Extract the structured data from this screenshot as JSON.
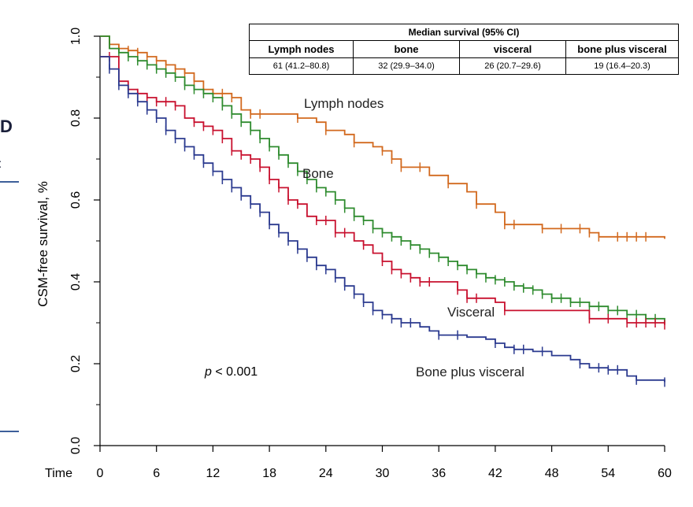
{
  "background_fragments": {
    "left_heading_fragment": "D",
    "left_subheading_fragment": "nt"
  },
  "chart_data": {
    "type": "line",
    "subtype": "kaplan-meier step curves with censor ticks",
    "xlabel": "Time",
    "ylabel": "CSM-free survival, %",
    "xlim": [
      0,
      60
    ],
    "ylim": [
      0,
      1.0
    ],
    "x_ticks": [
      0,
      6,
      12,
      18,
      24,
      30,
      36,
      42,
      48,
      54,
      60
    ],
    "y_ticks": [
      "0.0",
      "0.2",
      "0.4",
      "0.6",
      "0.8",
      "1.0"
    ],
    "grid": false,
    "annotation": "p < 0.001",
    "annotation_italic_part": "p",
    "annotation_rest": " < 0.001",
    "series": [
      {
        "name": "Lymph nodes",
        "color": "#d2691e",
        "points": [
          [
            0,
            1.0
          ],
          [
            1,
            0.98
          ],
          [
            2,
            0.97
          ],
          [
            3,
            0.965
          ],
          [
            4,
            0.96
          ],
          [
            5,
            0.95
          ],
          [
            6,
            0.94
          ],
          [
            7,
            0.93
          ],
          [
            8,
            0.92
          ],
          [
            9,
            0.91
          ],
          [
            10,
            0.89
          ],
          [
            11,
            0.87
          ],
          [
            12,
            0.86
          ],
          [
            14,
            0.85
          ],
          [
            15,
            0.82
          ],
          [
            16,
            0.81
          ],
          [
            18,
            0.81
          ],
          [
            20,
            0.81
          ],
          [
            21,
            0.8
          ],
          [
            23,
            0.79
          ],
          [
            24,
            0.77
          ],
          [
            26,
            0.76
          ],
          [
            27,
            0.74
          ],
          [
            29,
            0.73
          ],
          [
            30,
            0.72
          ],
          [
            31,
            0.7
          ],
          [
            32,
            0.68
          ],
          [
            35,
            0.66
          ],
          [
            37,
            0.64
          ],
          [
            39,
            0.62
          ],
          [
            40,
            0.59
          ],
          [
            42,
            0.57
          ],
          [
            43,
            0.54
          ],
          [
            45,
            0.54
          ],
          [
            47,
            0.53
          ],
          [
            52,
            0.52
          ],
          [
            53,
            0.51
          ],
          [
            60,
            0.505
          ]
        ],
        "censor_times": [
          1,
          2,
          3,
          4,
          5,
          6,
          7,
          8,
          9,
          10,
          12,
          13,
          14,
          16,
          17,
          21,
          24,
          27,
          30,
          31,
          32,
          34,
          37,
          40,
          43,
          44,
          47,
          49,
          51,
          52,
          53,
          55,
          56,
          57,
          58
        ],
        "label": "Lymph nodes"
      },
      {
        "name": "Bone",
        "color": "#2e8b2e",
        "points": [
          [
            0,
            1.0
          ],
          [
            1,
            0.97
          ],
          [
            2,
            0.96
          ],
          [
            3,
            0.95
          ],
          [
            4,
            0.94
          ],
          [
            5,
            0.93
          ],
          [
            6,
            0.92
          ],
          [
            7,
            0.91
          ],
          [
            8,
            0.9
          ],
          [
            9,
            0.88
          ],
          [
            10,
            0.87
          ],
          [
            11,
            0.86
          ],
          [
            12,
            0.85
          ],
          [
            13,
            0.83
          ],
          [
            14,
            0.81
          ],
          [
            15,
            0.79
          ],
          [
            16,
            0.77
          ],
          [
            17,
            0.75
          ],
          [
            18,
            0.73
          ],
          [
            19,
            0.71
          ],
          [
            20,
            0.69
          ],
          [
            21,
            0.67
          ],
          [
            22,
            0.65
          ],
          [
            23,
            0.63
          ],
          [
            24,
            0.62
          ],
          [
            25,
            0.6
          ],
          [
            26,
            0.58
          ],
          [
            27,
            0.56
          ],
          [
            28,
            0.55
          ],
          [
            29,
            0.53
          ],
          [
            30,
            0.52
          ],
          [
            31,
            0.51
          ],
          [
            32,
            0.5
          ],
          [
            33,
            0.49
          ],
          [
            34,
            0.48
          ],
          [
            35,
            0.47
          ],
          [
            36,
            0.46
          ],
          [
            37,
            0.45
          ],
          [
            38,
            0.44
          ],
          [
            39,
            0.43
          ],
          [
            40,
            0.42
          ],
          [
            41,
            0.41
          ],
          [
            42,
            0.405
          ],
          [
            43,
            0.4
          ],
          [
            44,
            0.39
          ],
          [
            45,
            0.385
          ],
          [
            46,
            0.38
          ],
          [
            47,
            0.37
          ],
          [
            48,
            0.36
          ],
          [
            50,
            0.35
          ],
          [
            52,
            0.34
          ],
          [
            54,
            0.33
          ],
          [
            56,
            0.32
          ],
          [
            58,
            0.31
          ],
          [
            60,
            0.3
          ]
        ],
        "censor_times": [
          2,
          3,
          4,
          5,
          6,
          7,
          8,
          9,
          10,
          11,
          12,
          13,
          14,
          15,
          16,
          17,
          18,
          19,
          20,
          21,
          22,
          23,
          24,
          25,
          26,
          27,
          28,
          29,
          30,
          31,
          32,
          33,
          34,
          35,
          36,
          37,
          38,
          39,
          40,
          41,
          42,
          43,
          44,
          45,
          46,
          47,
          48,
          49,
          50,
          51,
          52,
          53,
          54,
          55,
          56,
          57,
          58,
          59
        ],
        "label": "Bone"
      },
      {
        "name": "Visceral",
        "color": "#c8102e",
        "points": [
          [
            0,
            0.95
          ],
          [
            2,
            0.89
          ],
          [
            3,
            0.87
          ],
          [
            4,
            0.86
          ],
          [
            5,
            0.85
          ],
          [
            6,
            0.84
          ],
          [
            8,
            0.83
          ],
          [
            9,
            0.8
          ],
          [
            10,
            0.79
          ],
          [
            11,
            0.78
          ],
          [
            12,
            0.77
          ],
          [
            13,
            0.75
          ],
          [
            14,
            0.72
          ],
          [
            15,
            0.71
          ],
          [
            16,
            0.7
          ],
          [
            17,
            0.68
          ],
          [
            18,
            0.65
          ],
          [
            19,
            0.63
          ],
          [
            20,
            0.6
          ],
          [
            21,
            0.59
          ],
          [
            22,
            0.56
          ],
          [
            23,
            0.55
          ],
          [
            25,
            0.52
          ],
          [
            27,
            0.5
          ],
          [
            28,
            0.49
          ],
          [
            29,
            0.47
          ],
          [
            30,
            0.45
          ],
          [
            31,
            0.43
          ],
          [
            32,
            0.42
          ],
          [
            33,
            0.41
          ],
          [
            34,
            0.4
          ],
          [
            38,
            0.38
          ],
          [
            39,
            0.36
          ],
          [
            42,
            0.35
          ],
          [
            43,
            0.33
          ],
          [
            52,
            0.31
          ],
          [
            56,
            0.3
          ],
          [
            60,
            0.295
          ]
        ],
        "censor_times": [
          1,
          3,
          4,
          5,
          6,
          7,
          8,
          10,
          11,
          12,
          13,
          14,
          15,
          16,
          17,
          18,
          19,
          20,
          21,
          23,
          24,
          25,
          26,
          28,
          30,
          31,
          32,
          33,
          34,
          35,
          38,
          39,
          40,
          43,
          52,
          54,
          56,
          57,
          58,
          59,
          60
        ],
        "label": "Visceral"
      },
      {
        "name": "Bone plus visceral",
        "color": "#2b3a8f",
        "points": [
          [
            0,
            0.95
          ],
          [
            1,
            0.92
          ],
          [
            2,
            0.88
          ],
          [
            3,
            0.86
          ],
          [
            4,
            0.84
          ],
          [
            5,
            0.82
          ],
          [
            6,
            0.8
          ],
          [
            7,
            0.77
          ],
          [
            8,
            0.75
          ],
          [
            9,
            0.73
          ],
          [
            10,
            0.71
          ],
          [
            11,
            0.69
          ],
          [
            12,
            0.67
          ],
          [
            13,
            0.65
          ],
          [
            14,
            0.63
          ],
          [
            15,
            0.61
          ],
          [
            16,
            0.59
          ],
          [
            17,
            0.57
          ],
          [
            18,
            0.54
          ],
          [
            19,
            0.52
          ],
          [
            20,
            0.5
          ],
          [
            21,
            0.48
          ],
          [
            22,
            0.46
          ],
          [
            23,
            0.44
          ],
          [
            24,
            0.43
          ],
          [
            25,
            0.41
          ],
          [
            26,
            0.39
          ],
          [
            27,
            0.37
          ],
          [
            28,
            0.35
          ],
          [
            29,
            0.33
          ],
          [
            30,
            0.32
          ],
          [
            31,
            0.31
          ],
          [
            32,
            0.3
          ],
          [
            34,
            0.29
          ],
          [
            35,
            0.28
          ],
          [
            36,
            0.27
          ],
          [
            39,
            0.265
          ],
          [
            41,
            0.26
          ],
          [
            42,
            0.25
          ],
          [
            43,
            0.24
          ],
          [
            44,
            0.235
          ],
          [
            46,
            0.23
          ],
          [
            48,
            0.22
          ],
          [
            50,
            0.21
          ],
          [
            51,
            0.2
          ],
          [
            52,
            0.19
          ],
          [
            54,
            0.185
          ],
          [
            56,
            0.17
          ],
          [
            57,
            0.16
          ],
          [
            60,
            0.155
          ]
        ],
        "censor_times": [
          1,
          2,
          3,
          4,
          5,
          6,
          7,
          8,
          9,
          10,
          11,
          12,
          13,
          14,
          15,
          16,
          17,
          18,
          19,
          20,
          21,
          22,
          23,
          24,
          25,
          26,
          27,
          28,
          29,
          30,
          31,
          32,
          33,
          36,
          38,
          42,
          44,
          45,
          47,
          51,
          53,
          54,
          55,
          57,
          60
        ],
        "label": "Bone plus visceral"
      }
    ],
    "median_table": {
      "caption": "Median survival (95% CI)",
      "headers": [
        "Lymph nodes",
        "bone",
        "visceral",
        "bone plus visceral"
      ],
      "values": [
        "61 (41.2–80.8)",
        "32 (29.9–34.0)",
        "26 (20.7–29.6)",
        "19 (16.4–20.3)"
      ]
    }
  }
}
